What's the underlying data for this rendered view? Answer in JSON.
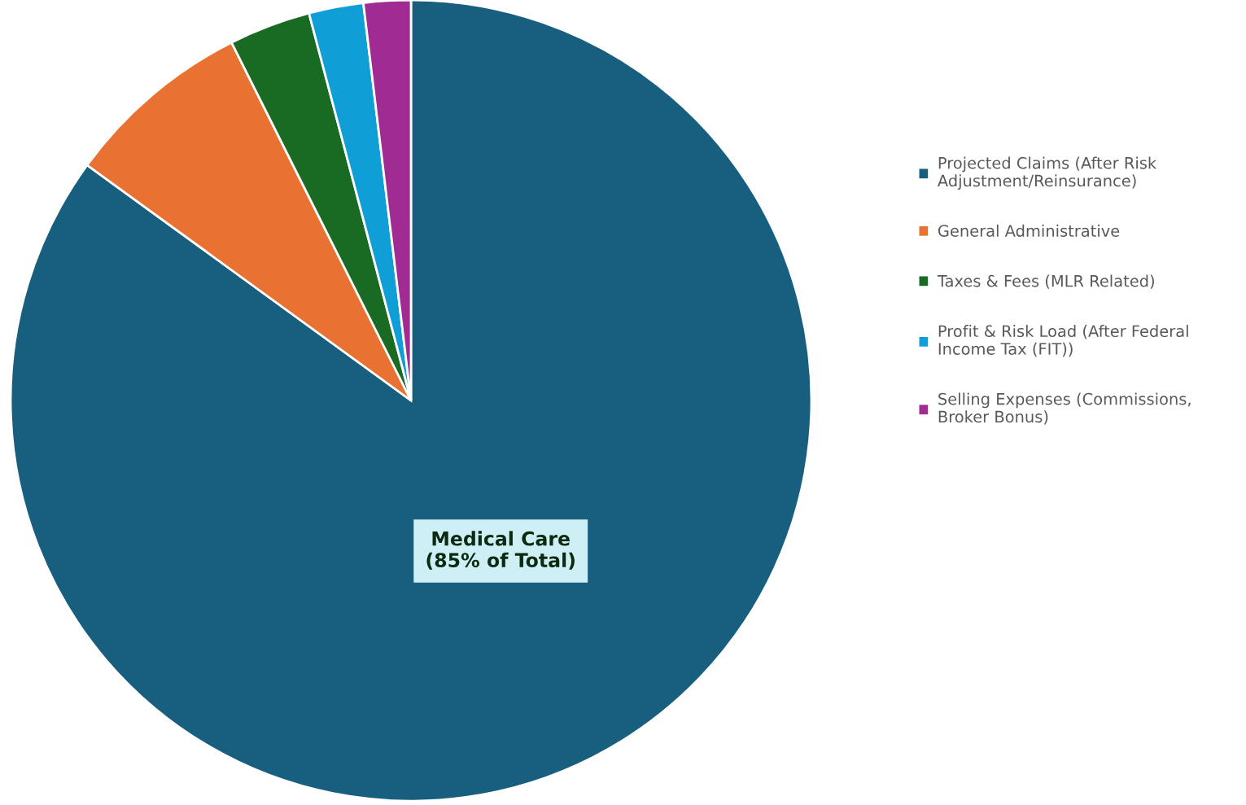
{
  "chart_data": {
    "type": "pie",
    "categories": [
      "Projected Claims (After Risk\nAdjustment/Reinsurance)",
      "General Administrative",
      "Taxes & Fees (MLR Related)",
      "Profit & Risk Load (After Federal\nIncome Tax (FIT))",
      "Selling Expenses (Commissions,\nBroker Bonus)"
    ],
    "values": [
      85,
      7.6,
      3.3,
      2.2,
      1.9
    ],
    "colors": [
      "#175e7f",
      "#e97132",
      "#196b24",
      "#0f9ed5",
      "#a02b93"
    ],
    "annotations": [
      "Medical Care\n(85% of Total)"
    ],
    "legend": "right"
  }
}
